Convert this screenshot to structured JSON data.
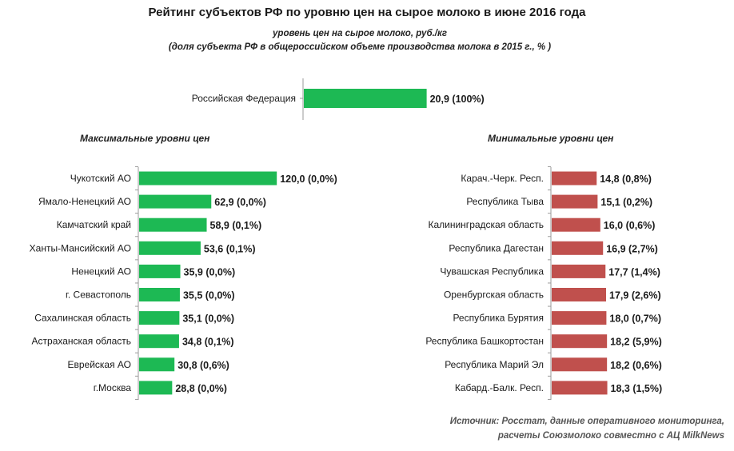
{
  "title": "Рейтинг субъектов РФ по уровню цен на сырое молоко в июне 2016 года",
  "subtitle_line1": "уровень цен на сырое молоко, руб./кг",
  "subtitle_line2": "(доля субъекта РФ в общероссийском объеме производства молока в 2015 г., % )",
  "source_line1": "Источник: Росстат, данные оперативного мониторинга,",
  "source_line2": "расчеты Союзмолоко совместно с АЦ MilkNews",
  "colors": {
    "green": "#1db954",
    "red": "#c0504d",
    "axis": "#9a9a9a"
  },
  "chart_data": [
    {
      "type": "bar",
      "orientation": "horizontal",
      "section": "",
      "categories": [
        "Российская Федерация"
      ],
      "values": [
        20.9
      ],
      "labels": [
        "20,9 (100%)"
      ],
      "color": "#1db954"
    },
    {
      "type": "bar",
      "orientation": "horizontal",
      "section": "Максимальные уровни цен",
      "categories": [
        "Чукотский АО",
        "Ямало-Ненецкий АО",
        "Камчатский край",
        "Ханты-Мансийский АО",
        "Ненецкий АО",
        "г. Севастополь",
        "Сахалинская область",
        "Астраханская область",
        "Еврейская АО",
        "г.Москва"
      ],
      "values": [
        120.0,
        62.9,
        58.9,
        53.6,
        35.9,
        35.5,
        35.1,
        34.8,
        30.8,
        28.8
      ],
      "shares": [
        0.0,
        0.0,
        0.1,
        0.1,
        0.0,
        0.0,
        0.0,
        0.1,
        0.6,
        0.0
      ],
      "labels": [
        "120,0 (0,0%)",
        "62,9 (0,0%)",
        "58,9 (0,1%)",
        "53,6 (0,1%)",
        "35,9 (0,0%)",
        "35,5 (0,0%)",
        "35,1 (0,0%)",
        "34,8 (0,1%)",
        "30,8 (0,6%)",
        "28,8 (0,0%)"
      ],
      "color": "#1db954"
    },
    {
      "type": "bar",
      "orientation": "horizontal",
      "section": "Минимальные уровни цен",
      "categories": [
        "Карач.-Черк. Респ.",
        "Республика Тыва",
        "Калининградская область",
        "Республика Дагестан",
        "Чувашская Республика",
        "Оренбургская область",
        "Республика Бурятия",
        "Республика Башкортостан",
        "Республика Марий Эл",
        "Кабард.-Балк. Респ."
      ],
      "values": [
        14.8,
        15.1,
        16.0,
        16.9,
        17.7,
        17.9,
        18.0,
        18.2,
        18.2,
        18.3
      ],
      "shares": [
        0.8,
        0.2,
        0.6,
        2.7,
        1.4,
        2.6,
        0.7,
        5.9,
        0.6,
        1.5
      ],
      "labels": [
        "14,8 (0,8%)",
        "15,1 (0,2%)",
        "16,0 (0,6%)",
        "16,9 (2,7%)",
        "17,7 (1,4%)",
        "17,9 (2,6%)",
        "18,0 (0,7%)",
        "18,2 (5,9%)",
        "18,2 (0,6%)",
        "18,3 (1,5%)"
      ],
      "color": "#c0504d"
    }
  ]
}
